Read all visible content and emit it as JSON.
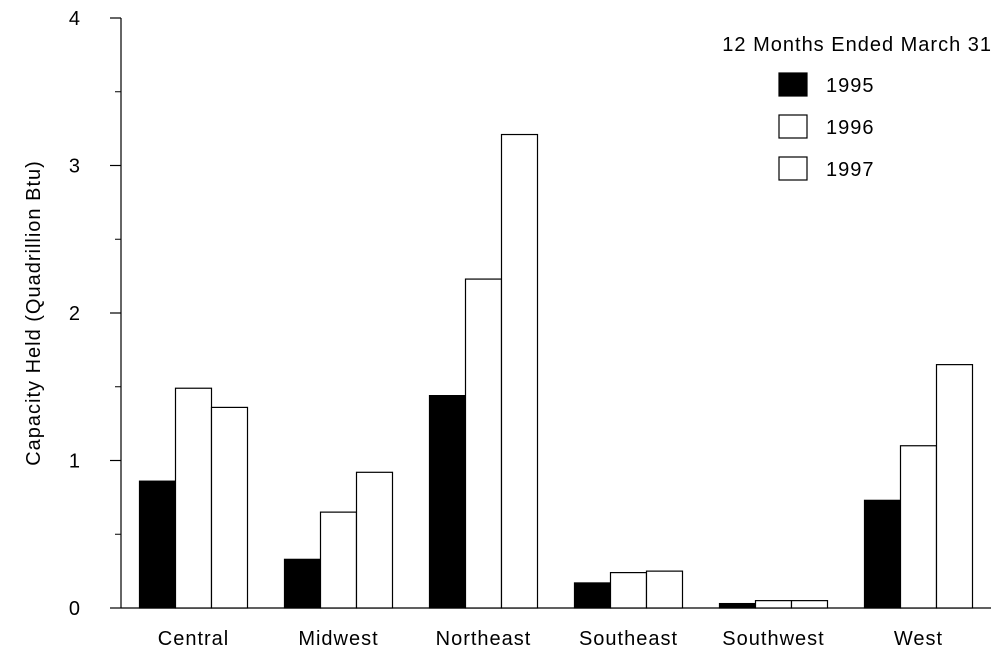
{
  "chart_data": {
    "type": "bar",
    "categories": [
      "Central",
      "Midwest",
      "Northeast",
      "Southeast",
      "Southwest",
      "West"
    ],
    "series": [
      {
        "name": "1995",
        "values": [
          0.86,
          0.33,
          1.44,
          0.17,
          0.03,
          0.73
        ],
        "color": "#000000"
      },
      {
        "name": "1996",
        "values": [
          1.49,
          0.65,
          2.23,
          0.24,
          0.05,
          1.1
        ],
        "color": "#ffffff"
      },
      {
        "name": "1997",
        "values": [
          1.36,
          0.92,
          3.21,
          0.25,
          0.05,
          1.65
        ],
        "color": "#ffffff"
      }
    ],
    "title": "",
    "xlabel": "",
    "ylabel": "Capacity Held (Quadrillion Btu)",
    "ylim": [
      0,
      4
    ],
    "yticks": [
      "0",
      "1",
      "2",
      "3",
      "4"
    ],
    "legend_title": "12 Months Ended March 31",
    "legend_position": "top-right",
    "grid": false
  }
}
